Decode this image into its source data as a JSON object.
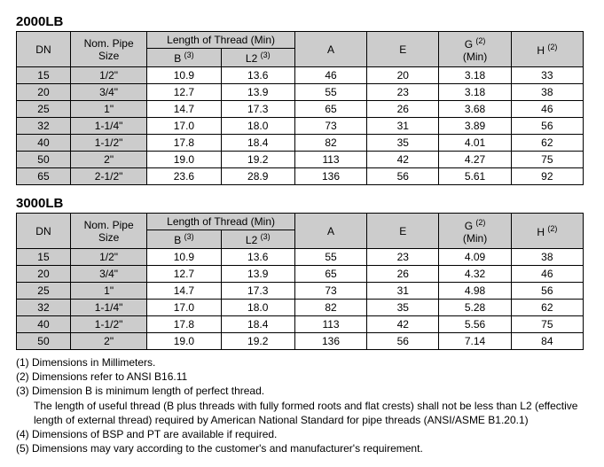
{
  "headers": {
    "dn": "DN",
    "nps": "Nom. Pipe Size",
    "lot_group": "Length of Thread (Min)",
    "b_html": "B <sup>(3)</sup>",
    "l2_html": "L2 <sup>(3)</sup>",
    "a": "A",
    "e": "E",
    "g_html": "G <sup>(2)</sup>",
    "g_sub": "(Min)",
    "h_html": "H <sup>(2)</sup>"
  },
  "t2000": {
    "title": "2000LB",
    "rows": [
      {
        "dn": "15",
        "nps": "1/2\"",
        "b": "10.9",
        "l2": "13.6",
        "a": "46",
        "e": "20",
        "g": "3.18",
        "h": "33"
      },
      {
        "dn": "20",
        "nps": "3/4\"",
        "b": "12.7",
        "l2": "13.9",
        "a": "55",
        "e": "23",
        "g": "3.18",
        "h": "38"
      },
      {
        "dn": "25",
        "nps": "1\"",
        "b": "14.7",
        "l2": "17.3",
        "a": "65",
        "e": "26",
        "g": "3.68",
        "h": "46"
      },
      {
        "dn": "32",
        "nps": "1-1/4\"",
        "b": "17.0",
        "l2": "18.0",
        "a": "73",
        "e": "31",
        "g": "3.89",
        "h": "56"
      },
      {
        "dn": "40",
        "nps": "1-1/2\"",
        "b": "17.8",
        "l2": "18.4",
        "a": "82",
        "e": "35",
        "g": "4.01",
        "h": "62"
      },
      {
        "dn": "50",
        "nps": "2\"",
        "b": "19.0",
        "l2": "19.2",
        "a": "113",
        "e": "42",
        "g": "4.27",
        "h": "75"
      },
      {
        "dn": "65",
        "nps": "2-1/2\"",
        "b": "23.6",
        "l2": "28.9",
        "a": "136",
        "e": "56",
        "g": "5.61",
        "h": "92"
      }
    ]
  },
  "t3000": {
    "title": "3000LB",
    "rows": [
      {
        "dn": "15",
        "nps": "1/2\"",
        "b": "10.9",
        "l2": "13.6",
        "a": "55",
        "e": "23",
        "g": "4.09",
        "h": "38"
      },
      {
        "dn": "20",
        "nps": "3/4\"",
        "b": "12.7",
        "l2": "13.9",
        "a": "65",
        "e": "26",
        "g": "4.32",
        "h": "46"
      },
      {
        "dn": "25",
        "nps": "1\"",
        "b": "14.7",
        "l2": "17.3",
        "a": "73",
        "e": "31",
        "g": "4.98",
        "h": "56"
      },
      {
        "dn": "32",
        "nps": "1-1/4\"",
        "b": "17.0",
        "l2": "18.0",
        "a": "82",
        "e": "35",
        "g": "5.28",
        "h": "62"
      },
      {
        "dn": "40",
        "nps": "1-1/2\"",
        "b": "17.8",
        "l2": "18.4",
        "a": "113",
        "e": "42",
        "g": "5.56",
        "h": "75"
      },
      {
        "dn": "50",
        "nps": "2\"",
        "b": "19.0",
        "l2": "19.2",
        "a": "136",
        "e": "56",
        "g": "7.14",
        "h": "84"
      }
    ]
  },
  "notes": {
    "n1": "(1) Dimensions in Millimeters.",
    "n2": "(2) Dimensions refer to ANSI B16.11",
    "n3a": "(3) Dimension B is minimum length of perfect thread.",
    "n3b": "The length of useful thread (B plus threads with fully formed roots and flat crests) shall not be less than L2 (effective length of external thread) required by American National Standard for pipe threads (ANSI/ASME B1.20.1)",
    "n4": "(4) Dimensions of BSP and PT are available if required.",
    "n5": "(5) Dimensions may vary according to the customer's and manufacturer's requirement."
  }
}
